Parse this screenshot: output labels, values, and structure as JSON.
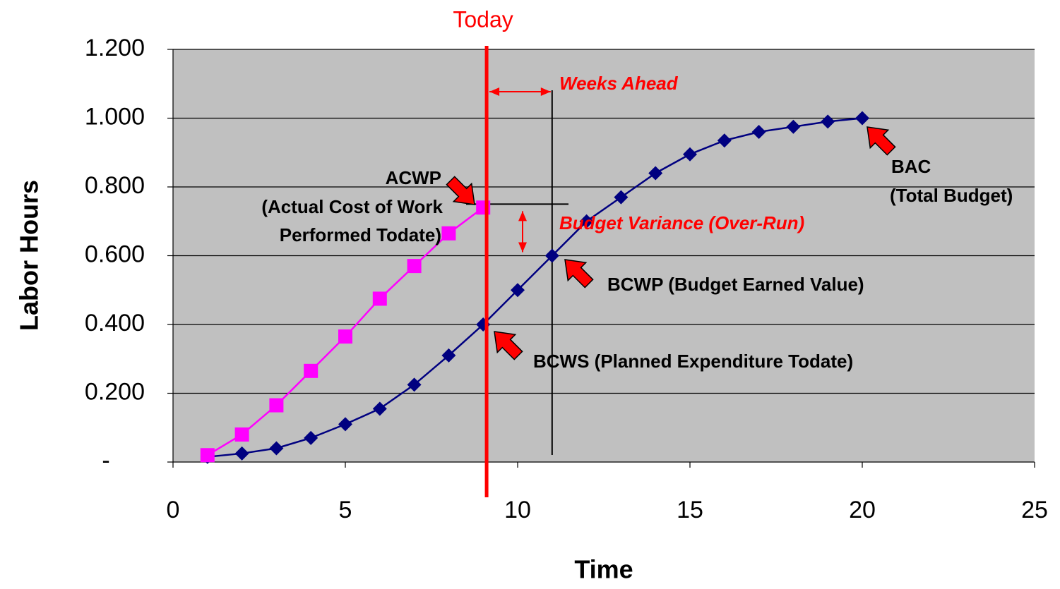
{
  "chart_data": {
    "type": "line",
    "y_label": "Labor Hours",
    "x_label": "Time",
    "xlim": [
      0,
      25
    ],
    "xticks": [
      0,
      5,
      10,
      15,
      20,
      25
    ],
    "ylim": [
      0,
      1.2
    ],
    "yticks": [
      {
        "value": 0,
        "label": "-"
      },
      {
        "value": 0.2,
        "label": "0.200"
      },
      {
        "value": 0.4,
        "label": "0.400"
      },
      {
        "value": 0.6,
        "label": "0.600"
      },
      {
        "value": 0.8,
        "label": "0.800"
      },
      {
        "value": 1.0,
        "label": "1.000"
      },
      {
        "value": 1.2,
        "label": "1.200"
      }
    ],
    "grid": true,
    "series": [
      {
        "color": "#000080",
        "marker": "diamond",
        "x": [
          1,
          2,
          3,
          4,
          5,
          6,
          7,
          8,
          9,
          10,
          11,
          12,
          13,
          14,
          15,
          16,
          17,
          18,
          19,
          20
        ],
        "values": [
          0.015,
          0.025,
          0.04,
          0.07,
          0.11,
          0.155,
          0.225,
          0.31,
          0.4,
          0.5,
          0.6,
          0.7,
          0.77,
          0.84,
          0.895,
          0.935,
          0.96,
          0.975,
          0.99,
          1.0
        ]
      },
      {
        "color": "#ff00ff",
        "marker": "square",
        "x": [
          1,
          2,
          3,
          4,
          5,
          6,
          7,
          8,
          9
        ],
        "values": [
          0.02,
          0.08,
          0.165,
          0.265,
          0.365,
          0.475,
          0.57,
          0.665,
          0.74
        ]
      }
    ],
    "annotations": {
      "today": {
        "text": "Today",
        "x": 9.1
      },
      "weeks_ahead": {
        "text": "Weeks Ahead",
        "from": 9.1,
        "to": 11
      },
      "budget_variance": {
        "text": "Budget Variance (Over-Run)",
        "from": 0.6,
        "to": 0.75
      },
      "acwp": [
        "ACWP",
        "(Actual Cost of Work",
        "Performed Todate)"
      ],
      "bac": [
        "BAC",
        "(Total Budget)"
      ],
      "bcwp": "BCWP (Budget Earned Value)",
      "bcws": "BCWS (Planned Expenditure Todate)"
    }
  }
}
